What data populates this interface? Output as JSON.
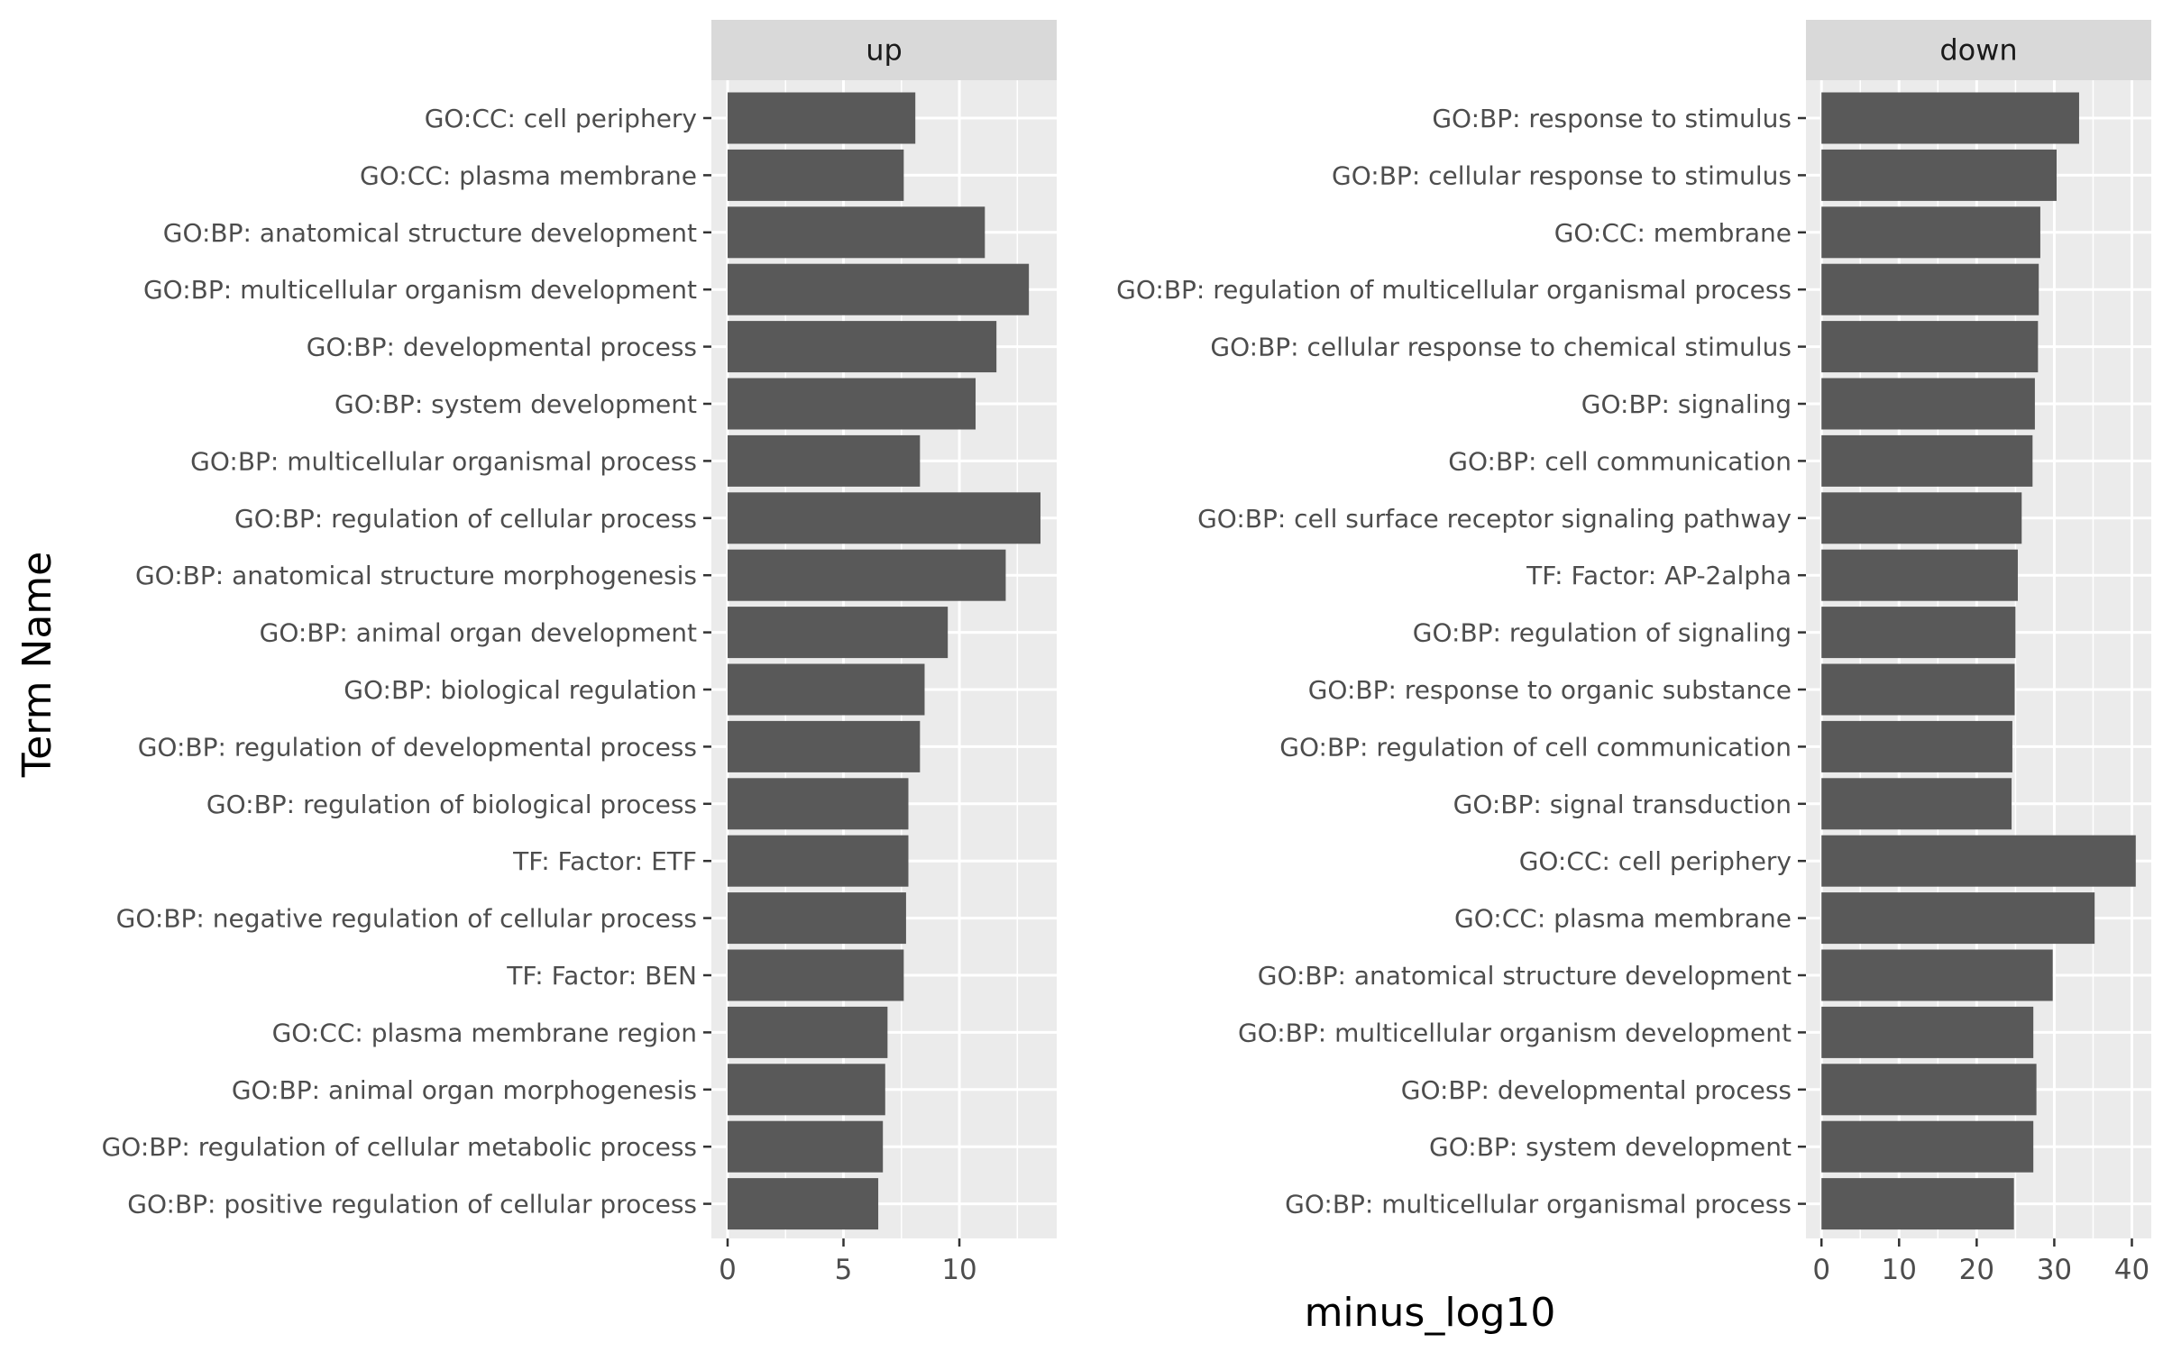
{
  "chart_data": {
    "type": "bar",
    "orientation": "horizontal",
    "xlabel": "minus_log10",
    "ylabel": "Term Name",
    "grid": true,
    "bar_color": "#595959",
    "panel_background": "#ebebeb",
    "strip_background": "#d9d9d9",
    "facets": [
      {
        "name": "up",
        "xlim": [
          -0.7,
          14.2
        ],
        "xticks": [
          0,
          5,
          10
        ],
        "categories": [
          "GO:CC: cell periphery",
          "GO:CC: plasma membrane",
          "GO:BP: anatomical structure development",
          "GO:BP: multicellular organism development",
          "GO:BP: developmental process",
          "GO:BP: system development",
          "GO:BP: multicellular organismal process",
          "GO:BP: regulation of cellular process",
          "GO:BP: anatomical structure morphogenesis",
          "GO:BP: animal organ development",
          "GO:BP: biological regulation",
          "GO:BP: regulation of developmental process",
          "GO:BP: regulation of biological process",
          "TF: Factor: ETF",
          "GO:BP: negative regulation of cellular process",
          "TF: Factor: BEN",
          "GO:CC: plasma membrane region",
          "GO:BP: animal organ morphogenesis",
          "GO:BP: regulation of cellular metabolic process",
          "GO:BP: positive regulation of cellular process"
        ],
        "values": [
          8.1,
          7.6,
          11.1,
          13.0,
          11.6,
          10.7,
          8.3,
          13.5,
          12.0,
          9.5,
          8.5,
          8.3,
          7.8,
          7.8,
          7.7,
          7.6,
          6.9,
          6.8,
          6.7,
          6.5
        ]
      },
      {
        "name": "down",
        "xlim": [
          -2.0,
          42.5
        ],
        "xticks": [
          0,
          10,
          20,
          30,
          40
        ],
        "categories": [
          "GO:BP: response to stimulus",
          "GO:BP: cellular response to stimulus",
          "GO:CC: membrane",
          "GO:BP: regulation of multicellular organismal process",
          "GO:BP: cellular response to chemical stimulus",
          "GO:BP: signaling",
          "GO:BP: cell communication",
          "GO:BP: cell surface receptor signaling pathway",
          "TF: Factor: AP-2alpha",
          "GO:BP: regulation of signaling",
          "GO:BP: response to organic substance",
          "GO:BP: regulation of cell communication",
          "GO:BP: signal transduction",
          "GO:CC: cell periphery",
          "GO:CC: plasma membrane",
          "GO:BP: anatomical structure development",
          "GO:BP: multicellular organism development",
          "GO:BP: developmental process",
          "GO:BP: system development",
          "GO:BP: multicellular organismal process"
        ],
        "values": [
          33.2,
          30.3,
          28.2,
          28.0,
          27.9,
          27.5,
          27.2,
          25.8,
          25.3,
          25.0,
          24.9,
          24.6,
          24.5,
          40.5,
          35.2,
          29.8,
          27.3,
          27.7,
          27.3,
          24.8
        ]
      }
    ]
  }
}
